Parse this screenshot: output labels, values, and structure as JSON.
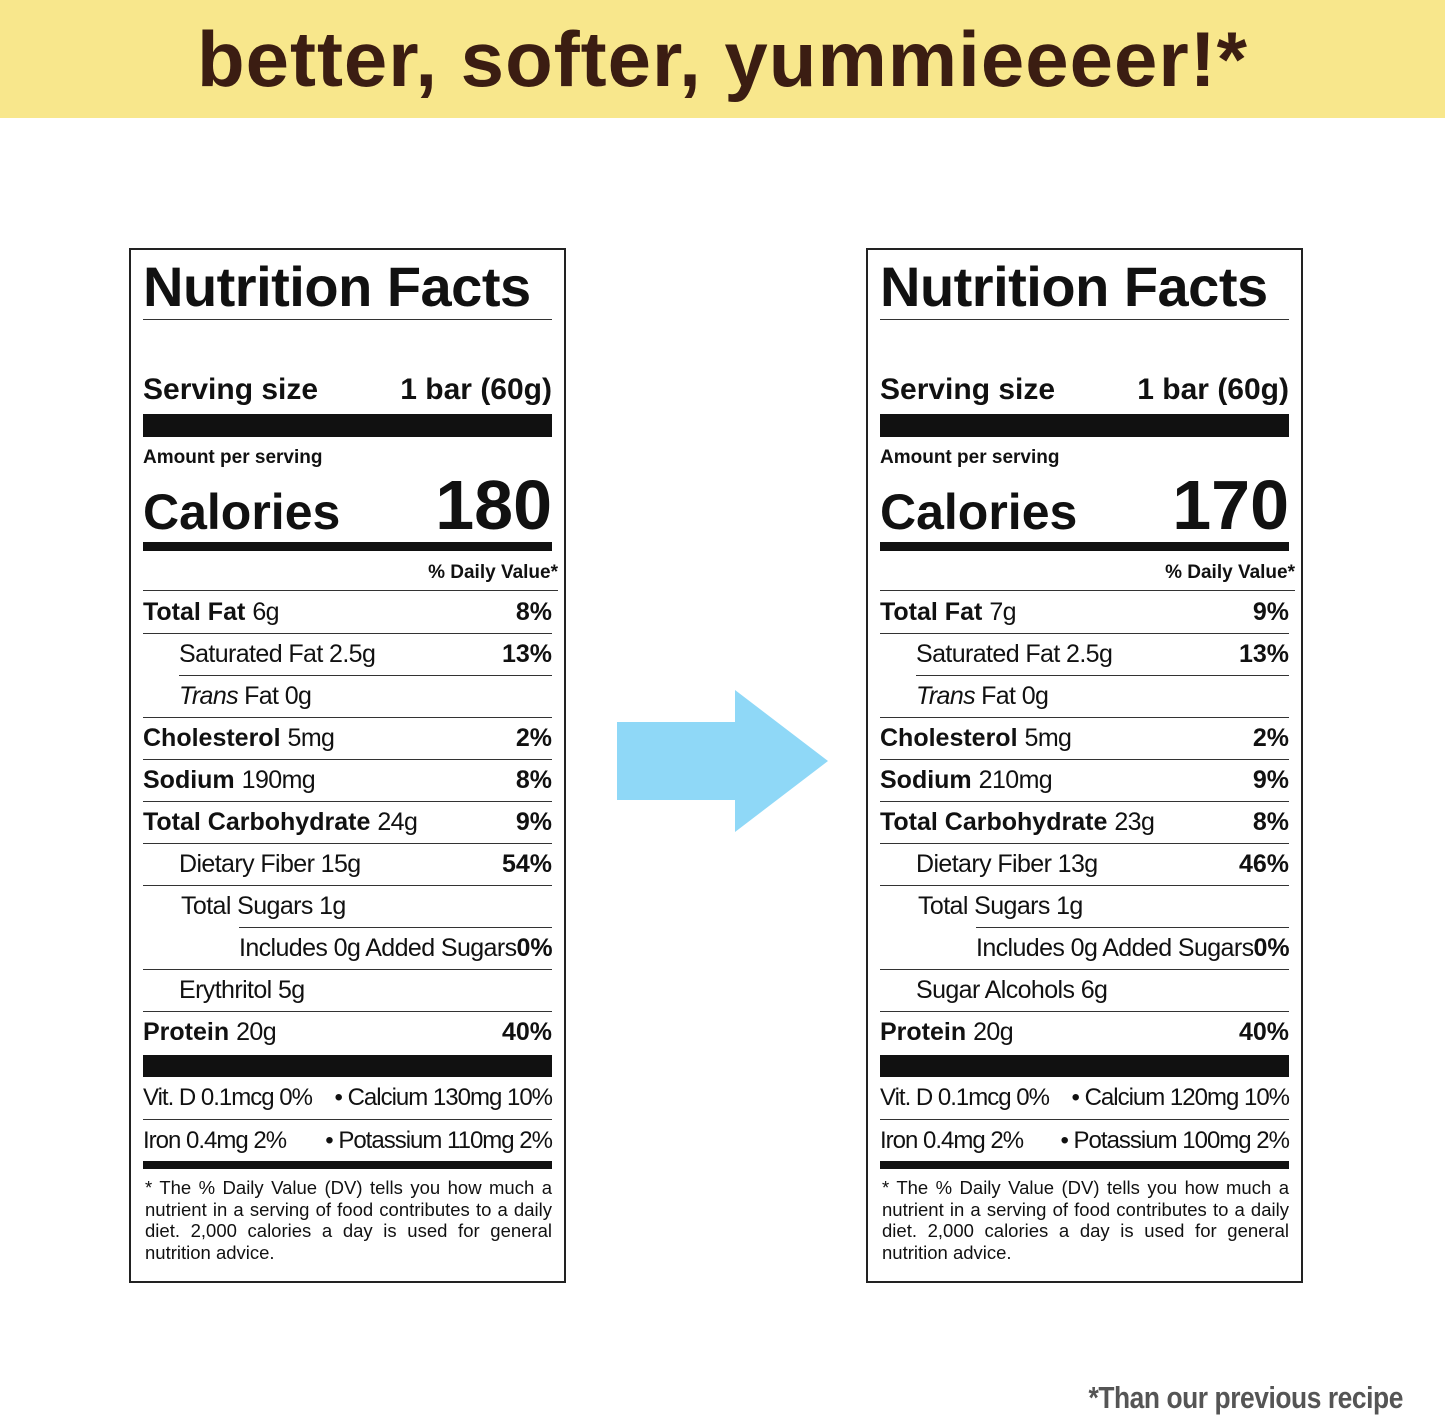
{
  "banner": {
    "title": "better, softer, yummieeeer!*"
  },
  "labels": [
    {
      "title": "Nutrition Facts",
      "serving_label": "Serving size",
      "serving_value": "1 bar (60g)",
      "amount_per_serving": "Amount per serving",
      "calories_label": "Calories",
      "calories": 180,
      "daily_value_header": "% Daily Value*",
      "rows": [
        {
          "name": "Total Fat",
          "amount": "6g",
          "dv": "8%"
        },
        {
          "amount": "Saturated Fat 2.5g",
          "dv": "13%"
        },
        {
          "italic": "Trans",
          "amount": "Fat 0g"
        },
        {
          "name": "Cholesterol",
          "amount": "5mg",
          "dv": "2%"
        },
        {
          "name": "Sodium",
          "amount": "190mg",
          "dv": "8%"
        },
        {
          "name": "Total Carbohydrate",
          "amount": "24g",
          "dv": "9%"
        },
        {
          "amount": "Dietary Fiber 15g",
          "dv": "54%"
        },
        {
          "amount": "Total Sugars 1g"
        },
        {
          "amount": "Includes 0g Added Sugars",
          "dv": "0%"
        },
        {
          "amount": "Erythritol 5g"
        },
        {
          "name": "Protein",
          "amount": "20g",
          "dv": "40%"
        }
      ],
      "vitamins": [
        [
          "Vit. D 0.1mcg 0%",
          "Calcium 130mg 10%"
        ],
        [
          "Iron 0.4mg 2%",
          "Potassium 110mg 2%"
        ]
      ],
      "footnote": "* The % Daily Value (DV) tells you how much a nutrient in a serving of food contributes to a daily diet. 2,000 calories a day is used for general nutrition advice."
    },
    {
      "title": "Nutrition Facts",
      "serving_label": "Serving size",
      "serving_value": "1 bar (60g)",
      "amount_per_serving": "Amount per serving",
      "calories_label": "Calories",
      "calories": 170,
      "daily_value_header": "% Daily Value*",
      "rows": [
        {
          "name": "Total Fat",
          "amount": "7g",
          "dv": "9%"
        },
        {
          "amount": "Saturated Fat 2.5g",
          "dv": "13%"
        },
        {
          "italic": "Trans",
          "amount": "Fat 0g"
        },
        {
          "name": "Cholesterol",
          "amount": "5mg",
          "dv": "2%"
        },
        {
          "name": "Sodium",
          "amount": "210mg",
          "dv": "9%"
        },
        {
          "name": "Total Carbohydrate",
          "amount": "23g",
          "dv": "8%"
        },
        {
          "amount": "Dietary Fiber 13g",
          "dv": "46%"
        },
        {
          "amount": "Total Sugars 1g"
        },
        {
          "amount": "Includes 0g Added Sugars",
          "dv": "0%"
        },
        {
          "amount": "Sugar Alcohols 6g"
        },
        {
          "name": "Protein",
          "amount": "20g",
          "dv": "40%"
        }
      ],
      "vitamins": [
        [
          "Vit. D 0.1mcg 0%",
          "Calcium 120mg 10%"
        ],
        [
          "Iron 0.4mg 2%",
          "Potassium 100mg 2%"
        ]
      ],
      "footnote": "* The % Daily Value (DV) tells you how much a nutrient in a serving of food contributes to a daily diet. 2,000 calories a day is used for general nutrition advice."
    }
  ],
  "footer": "*Than our previous recipe"
}
